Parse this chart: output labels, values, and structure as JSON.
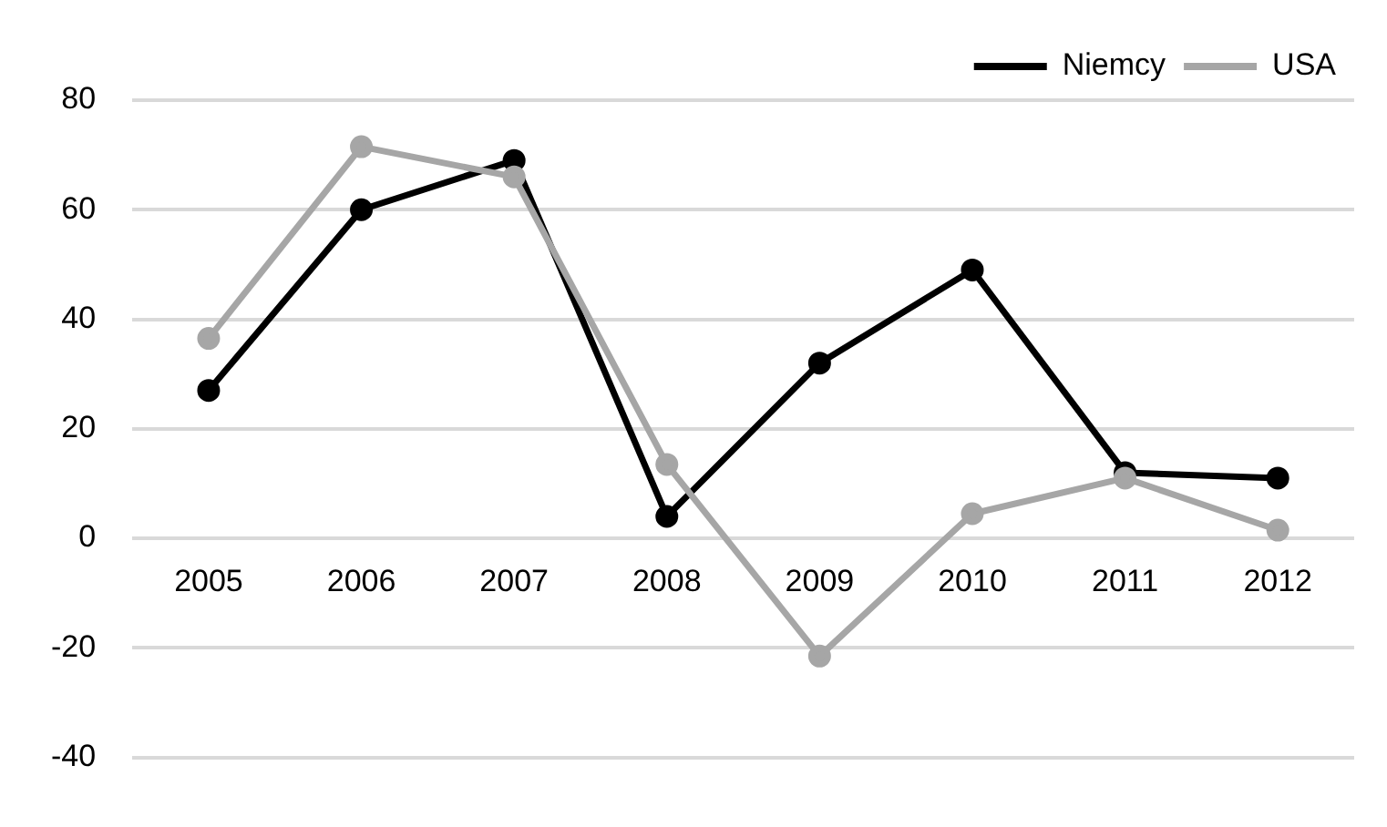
{
  "chart_data": {
    "type": "line",
    "categories": [
      "2005",
      "2006",
      "2007",
      "2008",
      "2009",
      "2010",
      "2011",
      "2012"
    ],
    "series": [
      {
        "name": "Niemcy",
        "color": "#000000",
        "values": [
          27,
          60,
          69,
          4,
          32,
          49,
          12,
          11
        ]
      },
      {
        "name": "USA",
        "color": "#a6a6a6",
        "values": [
          36.5,
          71.5,
          66,
          13.5,
          -21.5,
          4.5,
          11,
          1.5
        ]
      }
    ],
    "ylim": [
      -40,
      80
    ],
    "yticks": [
      -40,
      -20,
      0,
      20,
      40,
      60,
      80
    ],
    "grid": "y",
    "legend": "top right",
    "marker": "circle",
    "line_style": "solid"
  }
}
